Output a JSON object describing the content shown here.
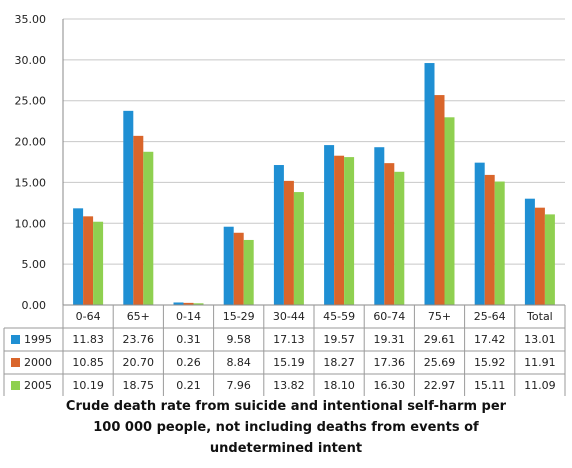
{
  "chart_data": {
    "type": "bar",
    "categories": [
      "0-64",
      "65+",
      "0-14",
      "15-29",
      "30-44",
      "45-59",
      "60-74",
      "75+",
      "25-64",
      "Total"
    ],
    "series": [
      {
        "name": "1995",
        "color": "#1f8fd3",
        "values": [
          11.83,
          23.76,
          0.31,
          9.58,
          17.13,
          19.57,
          19.31,
          29.61,
          17.42,
          13.01
        ]
      },
      {
        "name": "2000",
        "color": "#d9652b",
        "values": [
          10.85,
          20.7,
          0.26,
          8.84,
          15.19,
          18.27,
          17.36,
          25.69,
          15.92,
          11.91
        ]
      },
      {
        "name": "2005",
        "color": "#8fd050",
        "values": [
          10.19,
          18.75,
          0.21,
          7.96,
          13.82,
          18.1,
          16.3,
          22.97,
          15.11,
          11.09
        ]
      }
    ],
    "value_labels": [
      [
        "11.83",
        "23.76",
        "0.31",
        "9.58",
        "17.13",
        "19.57",
        "19.31",
        "29.61",
        "17.42",
        "13.01"
      ],
      [
        "10.85",
        "20.70",
        "0.26",
        "8.84",
        "15.19",
        "18.27",
        "17.36",
        "25.69",
        "15.92",
        "11.91"
      ],
      [
        "10.19",
        "18.75",
        "0.21",
        "7.96",
        "13.82",
        "18.10",
        "16.30",
        "22.97",
        "15.11",
        "11.09"
      ]
    ],
    "yticks": [
      "0.00",
      "5.00",
      "10.00",
      "15.00",
      "20.00",
      "25.00",
      "30.00",
      "35.00"
    ],
    "ylim": [
      0,
      35
    ],
    "grid": true,
    "legend": "data-table"
  },
  "caption": {
    "line1": "Crude death rate from suicide and intentional self-harm per",
    "line2": "100 000 people, not including deaths from events of",
    "line3": "undetermined intent"
  }
}
